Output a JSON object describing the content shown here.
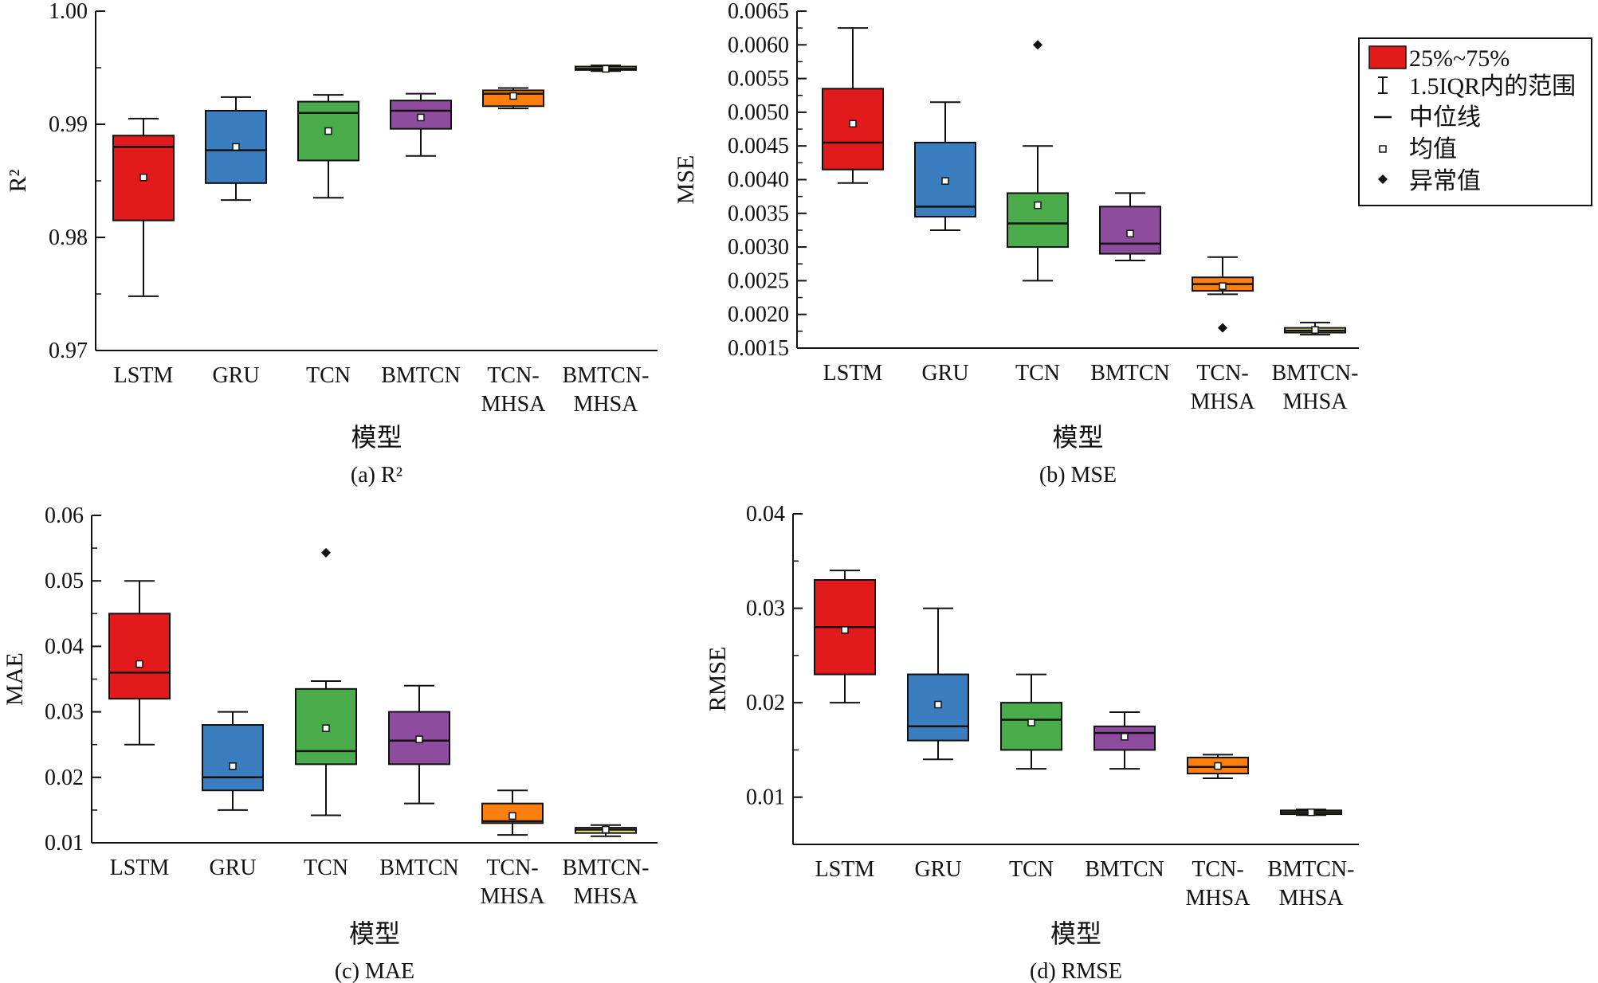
{
  "x_axis_label": "模型",
  "legend": {
    "box": "25%~75%",
    "whisker": "1.5IQR内的范围",
    "median": "中位线",
    "mean": "均值",
    "outlier": "异常值"
  },
  "colors": {
    "LSTM": "#e31a1c",
    "GRU": "#3a7ebf",
    "TCN": "#4aab4a",
    "BMTCN": "#8e4c9e",
    "TCN-MHSA": "#ff7f0e",
    "BMTCN-MHSA": "#f2ef8a"
  },
  "chart_data": [
    {
      "type": "box",
      "caption": "(a) R²",
      "ylabel": "R²",
      "ylim": [
        0.97,
        1.0
      ],
      "yticks": [
        "0.97",
        "0.98",
        "0.99",
        "1.00"
      ],
      "ytick_values": [
        0.97,
        0.98,
        0.99,
        1.0
      ],
      "categories": [
        "LSTM",
        "GRU",
        "TCN",
        "BMTCN",
        "TCN-\nMHSA",
        "BMTCN-\nMHSA"
      ],
      "series": [
        {
          "name": "LSTM",
          "min": 0.9748,
          "q1": 0.9815,
          "median": 0.988,
          "q3": 0.989,
          "max": 0.9905,
          "mean": 0.9853,
          "outliers": []
        },
        {
          "name": "GRU",
          "min": 0.9833,
          "q1": 0.9848,
          "median": 0.9877,
          "q3": 0.9912,
          "max": 0.9924,
          "mean": 0.988,
          "outliers": []
        },
        {
          "name": "TCN",
          "min": 0.9835,
          "q1": 0.9868,
          "median": 0.991,
          "q3": 0.992,
          "max": 0.9926,
          "mean": 0.9894,
          "outliers": []
        },
        {
          "name": "BMTCN",
          "min": 0.9872,
          "q1": 0.9896,
          "median": 0.9912,
          "q3": 0.9921,
          "max": 0.9927,
          "mean": 0.9906,
          "outliers": []
        },
        {
          "name": "TCN-MHSA",
          "min": 0.9914,
          "q1": 0.9916,
          "median": 0.9927,
          "q3": 0.993,
          "max": 0.9932,
          "mean": 0.9925,
          "outliers": []
        },
        {
          "name": "BMTCN-MHSA",
          "min": 0.9947,
          "q1": 0.9948,
          "median": 0.9949,
          "q3": 0.9951,
          "max": 0.9952,
          "mean": 0.9949,
          "outliers": []
        }
      ]
    },
    {
      "type": "box",
      "caption": "(b) MSE",
      "ylabel": "MSE",
      "ylim": [
        0.0015,
        0.0065
      ],
      "yticks": [
        "0.0015",
        "0.0020",
        "0.0025",
        "0.0030",
        "0.0035",
        "0.0040",
        "0.0045",
        "0.0050",
        "0.0055",
        "0.0060",
        "0.0065"
      ],
      "ytick_values": [
        0.0015,
        0.002,
        0.0025,
        0.003,
        0.0035,
        0.004,
        0.0045,
        0.005,
        0.0055,
        0.006,
        0.0065
      ],
      "categories": [
        "LSTM",
        "GRU",
        "TCN",
        "BMTCN",
        "TCN-\nMHSA",
        "BMTCN-\nMHSA"
      ],
      "series": [
        {
          "name": "LSTM",
          "min": 0.00395,
          "q1": 0.00415,
          "median": 0.00455,
          "q3": 0.00535,
          "max": 0.00625,
          "mean": 0.00483,
          "outliers": []
        },
        {
          "name": "GRU",
          "min": 0.00325,
          "q1": 0.00345,
          "median": 0.0036,
          "q3": 0.00455,
          "max": 0.00515,
          "mean": 0.00398,
          "outliers": []
        },
        {
          "name": "TCN",
          "min": 0.0025,
          "q1": 0.003,
          "median": 0.00335,
          "q3": 0.0038,
          "max": 0.0045,
          "mean": 0.00362,
          "outliers": [
            0.006
          ]
        },
        {
          "name": "BMTCN",
          "min": 0.0028,
          "q1": 0.0029,
          "median": 0.00305,
          "q3": 0.0036,
          "max": 0.0038,
          "mean": 0.0032,
          "outliers": []
        },
        {
          "name": "TCN-MHSA",
          "min": 0.0023,
          "q1": 0.00235,
          "median": 0.00245,
          "q3": 0.00255,
          "max": 0.00285,
          "mean": 0.00242,
          "outliers": [
            0.0018
          ]
        },
        {
          "name": "BMTCN-MHSA",
          "min": 0.0017,
          "q1": 0.00173,
          "median": 0.00176,
          "q3": 0.0018,
          "max": 0.00188,
          "mean": 0.00177,
          "outliers": []
        }
      ]
    },
    {
      "type": "box",
      "caption": "(c) MAE",
      "ylabel": "MAE",
      "ylim": [
        0.01,
        0.06
      ],
      "yticks": [
        "0.01",
        "0.02",
        "0.03",
        "0.04",
        "0.05",
        "0.06"
      ],
      "ytick_values": [
        0.01,
        0.02,
        0.03,
        0.04,
        0.05,
        0.06
      ],
      "categories": [
        "LSTM",
        "GRU",
        "TCN",
        "BMTCN",
        "TCN-\nMHSA",
        "BMTCN-\nMHSA"
      ],
      "series": [
        {
          "name": "LSTM",
          "min": 0.025,
          "q1": 0.032,
          "median": 0.036,
          "q3": 0.045,
          "max": 0.05,
          "mean": 0.0373,
          "outliers": []
        },
        {
          "name": "GRU",
          "min": 0.015,
          "q1": 0.018,
          "median": 0.02,
          "q3": 0.028,
          "max": 0.03,
          "mean": 0.0217,
          "outliers": []
        },
        {
          "name": "TCN",
          "min": 0.0142,
          "q1": 0.022,
          "median": 0.024,
          "q3": 0.0335,
          "max": 0.0347,
          "mean": 0.0275,
          "outliers": [
            0.0543
          ]
        },
        {
          "name": "BMTCN",
          "min": 0.016,
          "q1": 0.022,
          "median": 0.0256,
          "q3": 0.03,
          "max": 0.034,
          "mean": 0.0258,
          "outliers": []
        },
        {
          "name": "TCN-MHSA",
          "min": 0.0112,
          "q1": 0.013,
          "median": 0.0133,
          "q3": 0.016,
          "max": 0.018,
          "mean": 0.0141,
          "outliers": []
        },
        {
          "name": "BMTCN-MHSA",
          "min": 0.011,
          "q1": 0.0115,
          "median": 0.012,
          "q3": 0.0123,
          "max": 0.0127,
          "mean": 0.012,
          "outliers": []
        }
      ]
    },
    {
      "type": "box",
      "caption": "(d) RMSE",
      "ylabel": "RMSE",
      "ylim": [
        0.005,
        0.04
      ],
      "yticks": [
        "0.01",
        "0.02",
        "0.03",
        "0.04"
      ],
      "ytick_values": [
        0.01,
        0.02,
        0.03,
        0.04
      ],
      "categories": [
        "LSTM",
        "GRU",
        "TCN",
        "BMTCN",
        "TCN-\nMHSA",
        "BMTCN-\nMHSA"
      ],
      "series": [
        {
          "name": "LSTM",
          "min": 0.02,
          "q1": 0.023,
          "median": 0.028,
          "q3": 0.033,
          "max": 0.034,
          "mean": 0.0277,
          "outliers": []
        },
        {
          "name": "GRU",
          "min": 0.014,
          "q1": 0.016,
          "median": 0.0175,
          "q3": 0.023,
          "max": 0.03,
          "mean": 0.0198,
          "outliers": []
        },
        {
          "name": "TCN",
          "min": 0.013,
          "q1": 0.015,
          "median": 0.0182,
          "q3": 0.02,
          "max": 0.023,
          "mean": 0.0179,
          "outliers": []
        },
        {
          "name": "BMTCN",
          "min": 0.013,
          "q1": 0.015,
          "median": 0.0168,
          "q3": 0.0175,
          "max": 0.019,
          "mean": 0.0164,
          "outliers": []
        },
        {
          "name": "TCN-MHSA",
          "min": 0.012,
          "q1": 0.0125,
          "median": 0.0132,
          "q3": 0.0142,
          "max": 0.0145,
          "mean": 0.0133,
          "outliers": []
        },
        {
          "name": "BMTCN-MHSA",
          "min": 0.0081,
          "q1": 0.0082,
          "median": 0.0084,
          "q3": 0.0086,
          "max": 0.0087,
          "mean": 0.0084,
          "outliers": []
        }
      ]
    }
  ]
}
